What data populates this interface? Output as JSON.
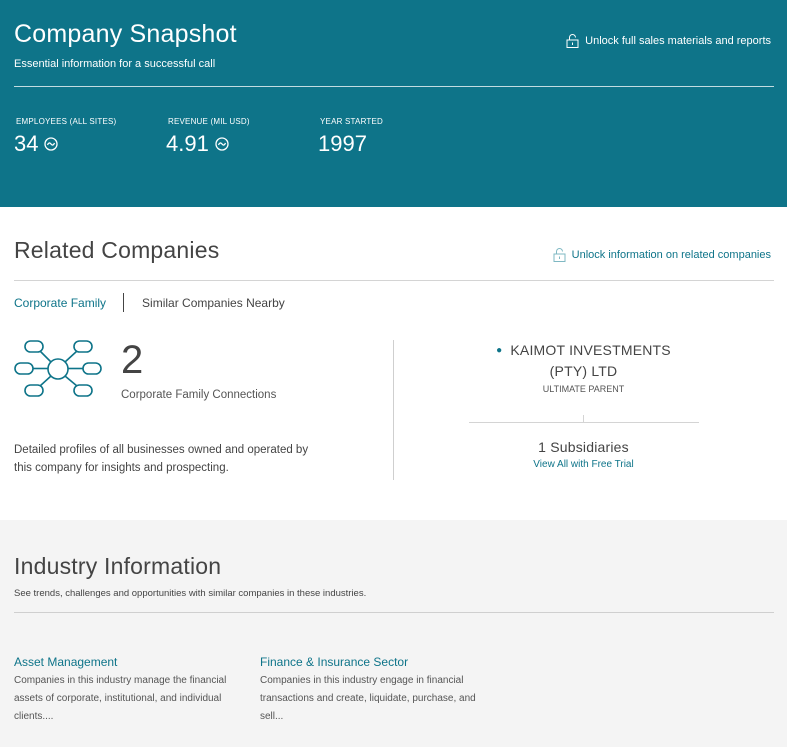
{
  "snapshot": {
    "title": "Company Snapshot",
    "subtitle": "Essential information for a successful call",
    "unlock_label": "Unlock full sales materials and reports",
    "stats": [
      {
        "label": "EMPLOYEES (ALL SITES)",
        "value": "34",
        "icon": "trend-icon"
      },
      {
        "label": "REVENUE (MIL USD)",
        "value": "4.91",
        "icon": "trend-icon"
      },
      {
        "label": "YEAR STARTED",
        "value": "1997"
      }
    ]
  },
  "related": {
    "title": "Related Companies",
    "unlock_label": "Unlock information on related companies",
    "tabs": [
      {
        "label": "Corporate Family",
        "active": true
      },
      {
        "label": "Similar Companies Nearby",
        "active": false
      }
    ],
    "family": {
      "count": "2",
      "count_label": "Corporate Family Connections",
      "description": "Detailed profiles of all businesses owned and operated by this company for insights and prospecting.",
      "parent_name_line1": "KAIMOT INVESTMENTS",
      "parent_name_line2": "(PTY) LTD",
      "parent_role": "ULTIMATE PARENT",
      "subsidiaries": "1 Subsidiaries",
      "subsidiaries_link": "View All with Free Trial"
    }
  },
  "industry": {
    "title": "Industry Information",
    "subtitle": "See trends, challenges and opportunities with similar companies in these industries.",
    "cards": [
      {
        "name": "Asset Management",
        "description": "Companies in this industry manage the financial assets of corporate, institutional, and individual clients...."
      },
      {
        "name": "Finance & Insurance Sector",
        "description": "Companies in this industry engage in financial transactions and create, liquidate, purchase, and sell..."
      }
    ]
  },
  "colors": {
    "accent": "#0e7489",
    "header_bg": "#0e7489",
    "industry_bg": "#f4f4f4"
  }
}
